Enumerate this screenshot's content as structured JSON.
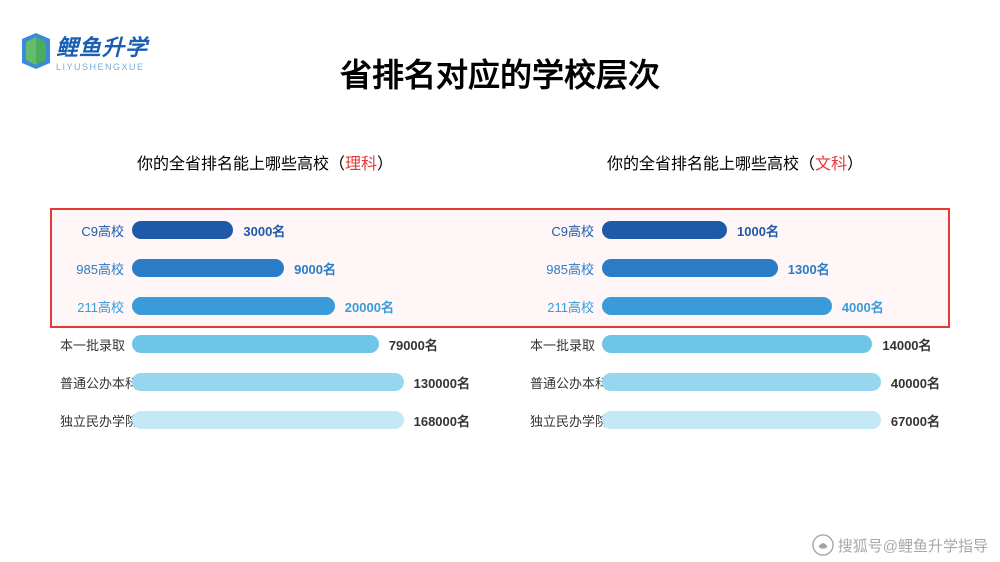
{
  "logo": {
    "cn": "鲤鱼升学",
    "en": "LIYUSHENGXUE",
    "icon_color_front": "#4caf50",
    "icon_color_back": "#1976d2"
  },
  "title": "省排名对应的学校层次",
  "highlight": {
    "border_color": "#e53935",
    "fill_color": "rgba(255,230,235,0.35)",
    "rows": [
      0,
      1,
      2
    ]
  },
  "charts": [
    {
      "subtitle_prefix": "你的全省排名能上哪些高校（",
      "stream": "理科",
      "subtitle_suffix": "）",
      "bar_track_width": 330,
      "bars": [
        {
          "label": "C9高校",
          "value": "3000名",
          "width_pct": 30,
          "color": "#1e5aa8",
          "label_color": "#1e5aa8",
          "value_color": "#1e5aa8"
        },
        {
          "label": "985高校",
          "value": "9000名",
          "width_pct": 45,
          "color": "#2a7cc7",
          "label_color": "#2a7cc7",
          "value_color": "#2a7cc7"
        },
        {
          "label": "211高校",
          "value": "20000名",
          "width_pct": 60,
          "color": "#3a9bd9",
          "label_color": "#3a9bd9",
          "value_color": "#3a9bd9"
        },
        {
          "label": "本一批录取",
          "value": "79000名",
          "width_pct": 73,
          "color": "#6fc5e8",
          "label_color": "#333333",
          "value_color": "#333333"
        },
        {
          "label": "普通公办本科",
          "value": "130000名",
          "width_pct": 85,
          "color": "#96d6ef",
          "label_color": "#333333",
          "value_color": "#333333"
        },
        {
          "label": "独立民办学院",
          "value": "168000名",
          "width_pct": 96,
          "color": "#c3e8f6",
          "label_color": "#333333",
          "value_color": "#333333"
        }
      ]
    },
    {
      "subtitle_prefix": "你的全省排名能上哪些高校（",
      "stream": "文科",
      "subtitle_suffix": "）",
      "bar_track_width": 330,
      "bars": [
        {
          "label": "C9高校",
          "value": "1000名",
          "width_pct": 37,
          "color": "#1e5aa8",
          "label_color": "#1e5aa8",
          "value_color": "#1e5aa8"
        },
        {
          "label": "985高校",
          "value": "1300名",
          "width_pct": 52,
          "color": "#2a7cc7",
          "label_color": "#2a7cc7",
          "value_color": "#2a7cc7"
        },
        {
          "label": "211高校",
          "value": "4000名",
          "width_pct": 68,
          "color": "#3a9bd9",
          "label_color": "#3a9bd9",
          "value_color": "#3a9bd9"
        },
        {
          "label": "本一批录取",
          "value": "14000名",
          "width_pct": 80,
          "color": "#6fc5e8",
          "label_color": "#333333",
          "value_color": "#333333"
        },
        {
          "label": "普通公办本科",
          "value": "40000名",
          "width_pct": 89,
          "color": "#96d6ef",
          "label_color": "#333333",
          "value_color": "#333333"
        },
        {
          "label": "独立民办学院",
          "value": "67000名",
          "width_pct": 97,
          "color": "#c3e8f6",
          "label_color": "#333333",
          "value_color": "#333333"
        }
      ]
    }
  ],
  "watermark": {
    "text": "搜狐号@鲤鱼升学指导"
  }
}
